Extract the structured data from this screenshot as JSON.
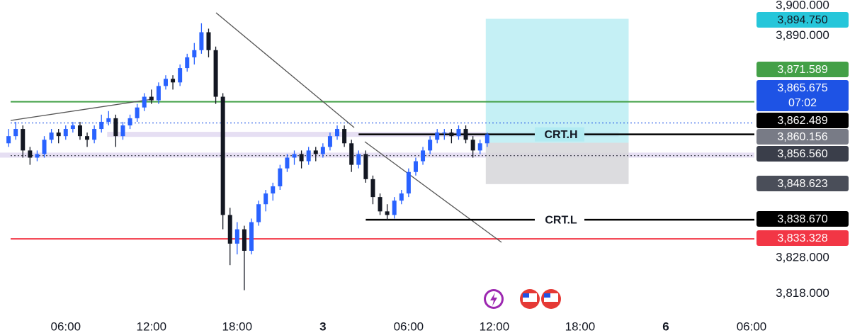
{
  "chart_data": {
    "type": "candlestick",
    "x": [
      2.0,
      2.5,
      3.0,
      3.5,
      4.0,
      4.5,
      5.0,
      5.5,
      6.0,
      6.5,
      7.0,
      7.5,
      8.0,
      8.5,
      9.0,
      9.5,
      10.0,
      10.5,
      11.0,
      11.5,
      12.0,
      12.5,
      13.0,
      13.5,
      14.0,
      14.5,
      15.0,
      15.5,
      16.0,
      16.5,
      17.0,
      17.5,
      18.0,
      18.5,
      19.0,
      19.5,
      20.0,
      20.5,
      21.0,
      21.5,
      22.0,
      22.5,
      23.0,
      23.5,
      24.0,
      24.5,
      25.0,
      25.5,
      26.0,
      26.5,
      27.0,
      27.5,
      28.0,
      28.5,
      29.0,
      29.5,
      30.0,
      30.5,
      31.0,
      31.5,
      32.0,
      32.5,
      33.0,
      33.5,
      34.0,
      34.5,
      35.0,
      35.5
    ],
    "ohlc": [
      [
        3860,
        3864,
        3859,
        3862
      ],
      [
        3862,
        3866,
        3861,
        3864
      ],
      [
        3864,
        3865,
        3856,
        3858
      ],
      [
        3858,
        3859,
        3854,
        3856
      ],
      [
        3856,
        3858,
        3855,
        3857
      ],
      [
        3857,
        3862,
        3856,
        3861
      ],
      [
        3861,
        3864,
        3860,
        3863
      ],
      [
        3863,
        3864,
        3860,
        3862
      ],
      [
        3862,
        3865,
        3861,
        3864
      ],
      [
        3864,
        3866,
        3863,
        3865
      ],
      [
        3865,
        3866,
        3861,
        3862
      ],
      [
        3862,
        3863,
        3859,
        3861
      ],
      [
        3861,
        3865,
        3860,
        3864
      ],
      [
        3864,
        3868,
        3863,
        3866
      ],
      [
        3866,
        3869,
        3865,
        3867
      ],
      [
        3867,
        3868,
        3859,
        3862
      ],
      [
        3862,
        3866,
        3861,
        3865
      ],
      [
        3865,
        3868,
        3864,
        3867
      ],
      [
        3867,
        3871,
        3866,
        3870
      ],
      [
        3870,
        3874,
        3869,
        3873
      ],
      [
        3873,
        3875,
        3871,
        3872
      ],
      [
        3872,
        3877,
        3871,
        3876
      ],
      [
        3876,
        3879,
        3875,
        3878
      ],
      [
        3878,
        3879,
        3875,
        3877
      ],
      [
        3877,
        3882,
        3876,
        3881
      ],
      [
        3881,
        3885,
        3880,
        3884
      ],
      [
        3884,
        3888,
        3882,
        3886
      ],
      [
        3886,
        3893.5,
        3885,
        3891
      ],
      [
        3891,
        3892,
        3884,
        3886
      ],
      [
        3886,
        3887,
        3871,
        3873
      ],
      [
        3873,
        3874,
        3836,
        3840
      ],
      [
        3840,
        3842,
        3826,
        3832
      ],
      [
        3832,
        3838,
        3829,
        3836
      ],
      [
        3836,
        3837,
        3819,
        3830
      ],
      [
        3830,
        3839,
        3829,
        3838
      ],
      [
        3838,
        3844,
        3837,
        3843
      ],
      [
        3843,
        3847,
        3841,
        3846
      ],
      [
        3846,
        3849,
        3844,
        3848
      ],
      [
        3848,
        3854,
        3847,
        3853
      ],
      [
        3853,
        3857,
        3852,
        3856
      ],
      [
        3856,
        3858,
        3854,
        3857
      ],
      [
        3857,
        3858,
        3853,
        3855
      ],
      [
        3855,
        3859,
        3854,
        3858
      ],
      [
        3858,
        3859,
        3855,
        3857
      ],
      [
        3857,
        3860,
        3856,
        3859
      ],
      [
        3859,
        3863,
        3858,
        3862
      ],
      [
        3862,
        3865,
        3861,
        3864
      ],
      [
        3864,
        3865,
        3859,
        3860
      ],
      [
        3860,
        3861,
        3852,
        3854
      ],
      [
        3854,
        3858,
        3853,
        3857
      ],
      [
        3857,
        3858,
        3849,
        3850
      ],
      [
        3850,
        3851,
        3843,
        3845
      ],
      [
        3845,
        3846,
        3840,
        3841
      ],
      [
        3841,
        3843,
        3838.6,
        3840
      ],
      [
        3840,
        3845,
        3839,
        3844
      ],
      [
        3844,
        3847,
        3843,
        3846
      ],
      [
        3846,
        3853,
        3845,
        3852
      ],
      [
        3852,
        3856,
        3851,
        3855
      ],
      [
        3855,
        3859,
        3854,
        3858
      ],
      [
        3858,
        3862,
        3857,
        3861
      ],
      [
        3861,
        3864,
        3860,
        3863
      ],
      [
        3863,
        3864,
        3861,
        3863
      ],
      [
        3863,
        3864,
        3860,
        3862
      ],
      [
        3862,
        3865,
        3861,
        3864
      ],
      [
        3864,
        3865,
        3860,
        3861
      ],
      [
        3861,
        3862,
        3856,
        3858
      ],
      [
        3858,
        3861,
        3857,
        3860
      ],
      [
        3860,
        3863,
        3859,
        3862.489
      ]
    ],
    "up_color": "#2962ff",
    "down_color": "#131722",
    "xlim": [
      1.4,
      54.2
    ],
    "xticks": [
      {
        "value": 6,
        "label": "06:00"
      },
      {
        "value": 12,
        "label": "12:00"
      },
      {
        "value": 18,
        "label": "18:00"
      },
      {
        "value": 24,
        "label": "3"
      },
      {
        "value": 30,
        "label": "06:00"
      },
      {
        "value": 36,
        "label": "12:00"
      },
      {
        "value": 42,
        "label": "18:00"
      },
      {
        "value": 48,
        "label": "6"
      },
      {
        "value": 54,
        "label": "06:00"
      }
    ],
    "ylim": [
      3812,
      3900
    ],
    "yticks": [
      {
        "value": 3900,
        "label": "3,900.000"
      },
      {
        "value": 3890,
        "label": "3,890.000"
      },
      {
        "value": 3828,
        "label": "3,828.000"
      },
      {
        "value": 3818,
        "label": "3,818.000"
      }
    ],
    "levels": [
      {
        "value": 3894.75,
        "label": "3,894.750",
        "color": "#26c6da"
      },
      {
        "value": 3871.589,
        "label": "3,871.589",
        "color": "#43a047",
        "line": "solid"
      },
      {
        "value": 3865.675,
        "label": "3,865.675",
        "countdown": "07:02",
        "color": "#1e53e5",
        "line": "dotted"
      },
      {
        "value": 3862.489,
        "label": "3,862.489",
        "color": "#000000"
      },
      {
        "value": 3860.156,
        "label": "3,860.156",
        "color": "#787b86"
      },
      {
        "value": 3856.56,
        "label": "3,856.560",
        "color": "#3a3e4a",
        "line": "dotted"
      },
      {
        "value": 3848.623,
        "label": "3,848.623",
        "color": "#4a4e59"
      },
      {
        "value": 3838.67,
        "label": "3,838.670",
        "color": "#000000"
      },
      {
        "value": 3833.328,
        "label": "3,833.328",
        "color": "#f23645",
        "line": "solid"
      }
    ],
    "annotations": [
      {
        "label": "CRT.H",
        "value": 3862.489,
        "start": 26.5
      },
      {
        "label": "CRT.L",
        "value": 3838.67,
        "start": 27.0
      }
    ],
    "zones": [
      {
        "from": 3861.8,
        "to": 3863.2,
        "start": 8.9,
        "end": 44.7
      },
      {
        "from": 3856.0,
        "to": 3857.4,
        "start": 1.4,
        "end": 54.2
      }
    ],
    "position": {
      "target": 3894.75,
      "entry": 3860.156,
      "stop": 3848.623,
      "start": 35.4,
      "end": 45.4
    }
  }
}
